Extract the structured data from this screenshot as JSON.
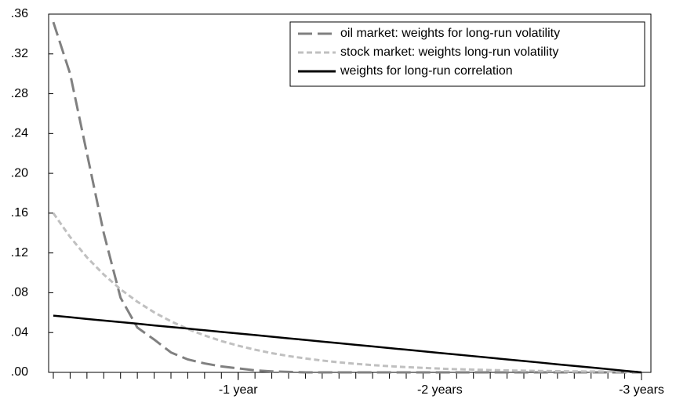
{
  "chart_data": {
    "type": "line",
    "x": [
      1,
      2,
      3,
      4,
      5,
      6,
      7,
      8,
      9,
      10,
      11,
      12,
      13,
      14,
      15,
      16,
      17,
      18,
      19,
      20,
      21,
      22,
      23,
      24,
      25,
      26,
      27,
      28,
      29,
      30,
      31,
      32,
      33,
      34,
      35,
      36
    ],
    "series": [
      {
        "name": "oil market: weights for long-run volatility",
        "color": "#808080",
        "dash": "18 7",
        "values": [
          0.352,
          0.3,
          0.22,
          0.14,
          0.075,
          0.045,
          0.033,
          0.02,
          0.013,
          0.009,
          0.006,
          0.004,
          0.002,
          0.001,
          0.0005,
          0,
          0,
          0,
          0,
          0,
          0,
          0,
          0,
          0,
          0,
          0,
          0,
          0,
          0,
          0,
          0,
          0,
          0,
          0,
          0,
          0
        ]
      },
      {
        "name": "stock market: weights long-run volatility",
        "color": "#c0c0c0",
        "dash": "7 4",
        "values": [
          0.16,
          0.136,
          0.1156,
          0.0983,
          0.0835,
          0.071,
          0.0603,
          0.0513,
          0.0436,
          0.0371,
          0.0315,
          0.0268,
          0.0228,
          0.0193,
          0.0164,
          0.014,
          0.0119,
          0.0101,
          0.0086,
          0.0073,
          0.0062,
          0.0053,
          0.0045,
          0.0038,
          0.0032,
          0.0028,
          0.0023,
          0.002,
          0.0017,
          0.0014,
          0.0012,
          0.001,
          0.0009,
          0.0008,
          0.0006,
          0.0005
        ]
      },
      {
        "name": "weights for long-run correlation",
        "color": "#000000",
        "dash": "none",
        "values": [
          0.057,
          0.0554,
          0.0537,
          0.0521,
          0.0505,
          0.0489,
          0.0472,
          0.0456,
          0.044,
          0.0423,
          0.0407,
          0.0391,
          0.0375,
          0.0358,
          0.0342,
          0.0326,
          0.0309,
          0.0293,
          0.0277,
          0.0261,
          0.0244,
          0.0228,
          0.0212,
          0.0195,
          0.0179,
          0.0163,
          0.0147,
          0.013,
          0.0114,
          0.0098,
          0.0081,
          0.0065,
          0.0049,
          0.0033,
          0.0016,
          0
        ]
      }
    ],
    "xlim": [
      0.72,
      36.56
    ],
    "xticks": [
      {
        "value": 12,
        "label": "-1 year"
      },
      {
        "value": 24,
        "label": "-2 years"
      },
      {
        "value": 36,
        "label": "-3 years"
      }
    ],
    "x_minor_ticks": [
      1,
      2,
      3,
      4,
      5,
      6,
      7,
      8,
      9,
      10,
      11,
      12,
      13,
      14,
      15,
      16,
      17,
      18,
      19,
      20,
      21,
      22,
      23,
      24,
      25,
      26,
      27,
      28,
      29,
      30,
      31,
      32,
      33,
      34,
      35,
      36
    ],
    "ylim": [
      0,
      0.36
    ],
    "yticks": [
      {
        "value": 0,
        "label": ".00"
      },
      {
        "value": 0.04,
        "label": ".04"
      },
      {
        "value": 0.08,
        "label": ".08"
      },
      {
        "value": 0.12,
        "label": ".12"
      },
      {
        "value": 0.16,
        "label": ".16"
      },
      {
        "value": 0.2,
        "label": ".20"
      },
      {
        "value": 0.24,
        "label": ".24"
      },
      {
        "value": 0.28,
        "label": ".28"
      },
      {
        "value": 0.32,
        "label": ".32"
      },
      {
        "value": 0.36,
        "label": ".36"
      }
    ],
    "legend": "top-right",
    "grid": false
  }
}
